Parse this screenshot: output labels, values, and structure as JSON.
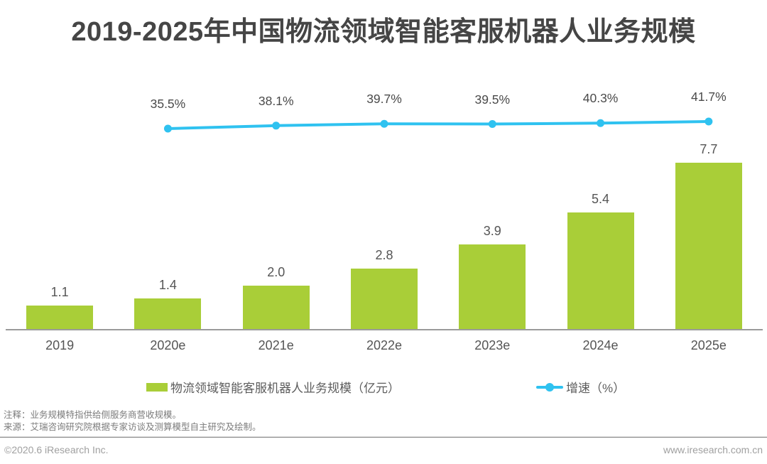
{
  "title": "2019-2025年中国物流领域智能客服机器人业务规模",
  "chart_data": {
    "type": "bar",
    "title": "2019-2025年中国物流领域智能客服机器人业务规模",
    "categories": [
      "2019",
      "2020e",
      "2021e",
      "2022e",
      "2023e",
      "2024e",
      "2025e"
    ],
    "series": [
      {
        "name": "物流领域智能客服机器人业务规模（亿元）",
        "type": "bar",
        "values": [
          1.1,
          1.4,
          2.0,
          2.8,
          3.9,
          5.4,
          7.7
        ],
        "labels": [
          "1.1",
          "1.4",
          "2.0",
          "2.8",
          "3.9",
          "5.4",
          "7.7"
        ],
        "color": "#a9ce38"
      },
      {
        "name": "增速（%）",
        "type": "line",
        "categories": [
          "2020e",
          "2021e",
          "2022e",
          "2023e",
          "2024e",
          "2025e"
        ],
        "values": [
          35.5,
          38.1,
          39.7,
          39.5,
          40.3,
          41.7
        ],
        "labels": [
          "35.5%",
          "38.1%",
          "39.7%",
          "39.5%",
          "40.3%",
          "41.7%"
        ],
        "color": "#2fc2f0"
      }
    ],
    "ylim": [
      0,
      8.8
    ],
    "grid": false,
    "legend_position": "bottom"
  },
  "legend": {
    "bar_label": "物流领域智能客服机器人业务规模（亿元）",
    "line_label": "增速（%）"
  },
  "notes": {
    "annotation": "注释：业务规模特指供给侧服务商营收规模。",
    "source": "来源：艾瑞咨询研究院根据专家访谈及测算模型自主研究及绘制。"
  },
  "footer": {
    "copyright": "©2020.6 iResearch Inc.",
    "website": "www.iresearch.com.cn"
  },
  "colors": {
    "bar": "#a9ce38",
    "line": "#2fc2f0",
    "title_text": "#454545",
    "axis": "#9b9b9b"
  }
}
